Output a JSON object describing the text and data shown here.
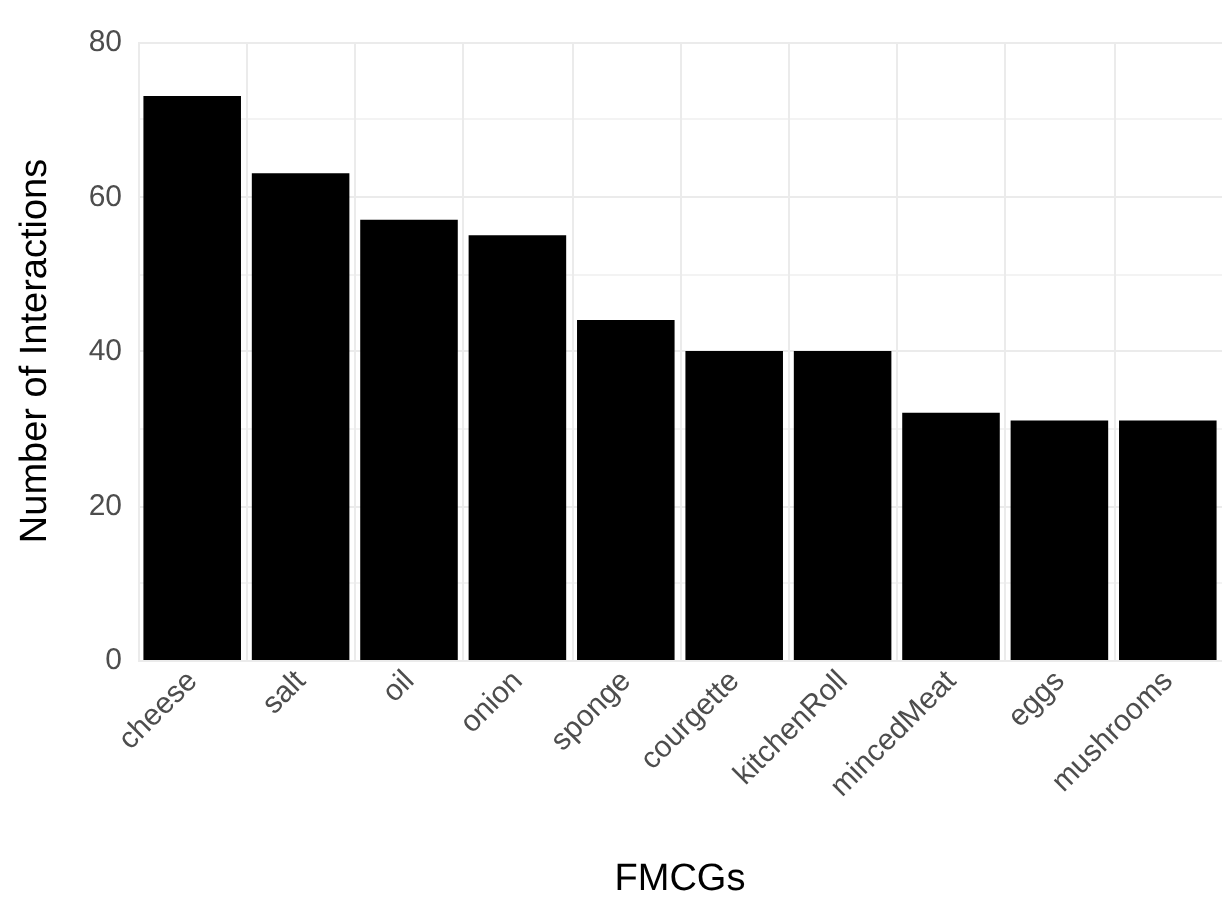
{
  "chart_data": {
    "type": "bar",
    "xlabel": "FMCGs",
    "ylabel": "Number of Interactions",
    "categories": [
      "cheese",
      "salt",
      "oil",
      "onion",
      "sponge",
      "courgette",
      "kitchenRoll",
      "mincedMeat",
      "eggs",
      "mushrooms"
    ],
    "values": [
      73,
      63,
      57,
      55,
      44,
      40,
      40,
      32,
      31,
      31
    ],
    "color": "#000000",
    "ylim": [
      0,
      80
    ],
    "yticks": [
      0,
      20,
      40,
      60,
      80
    ],
    "grid": true
  }
}
